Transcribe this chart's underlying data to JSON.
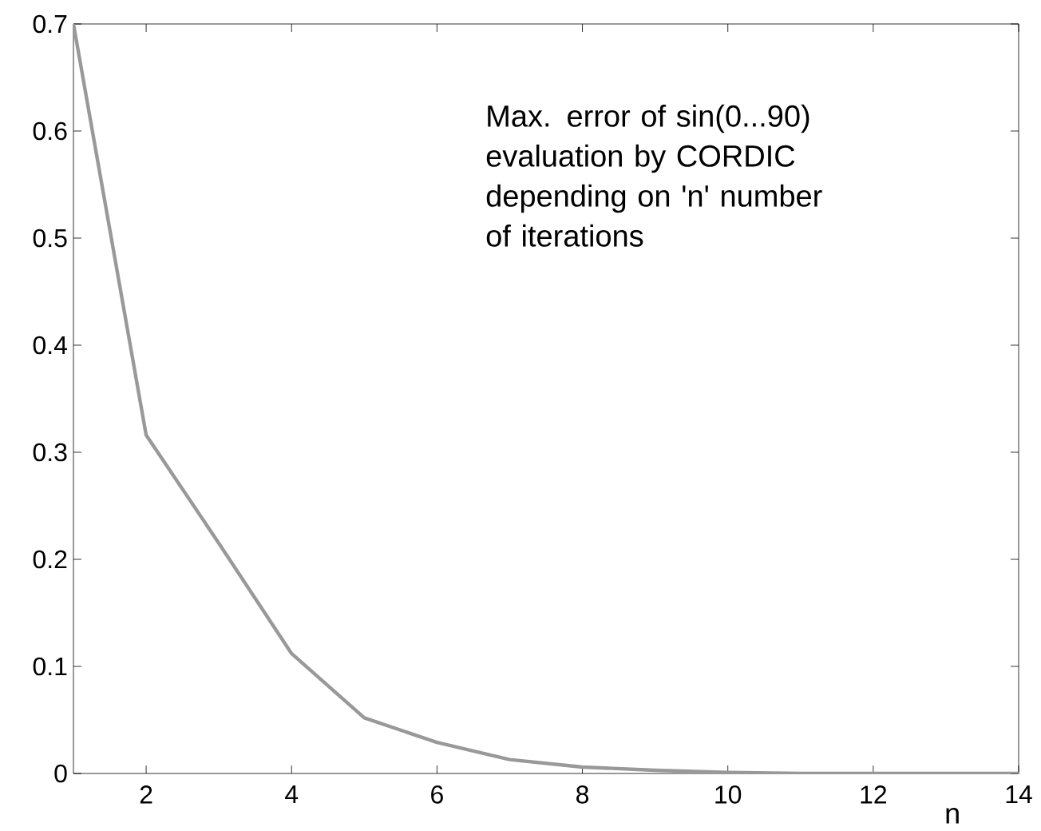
{
  "chart_data": {
    "type": "line",
    "x": [
      1,
      2,
      3,
      4,
      5,
      6,
      7,
      8,
      9,
      10,
      11,
      12,
      13,
      14
    ],
    "values": [
      0.7,
      0.316,
      0.215,
      0.112,
      0.052,
      0.029,
      0.013,
      0.006,
      0.003,
      0.001,
      0,
      0,
      0,
      0
    ],
    "color": "#999999",
    "xlabel": "n",
    "xlim": [
      1,
      14
    ],
    "xticks": [
      2,
      4,
      6,
      8,
      10,
      12,
      14
    ],
    "ylim": [
      0,
      0.7
    ],
    "yticks": [
      0,
      0.1,
      0.2,
      0.3,
      0.4,
      0.5,
      0.6,
      0.7
    ],
    "annotations": [
      "Max. error of sin(0...90) evaluation by CORDIC depending on 'n' number of iterations"
    ],
    "grid": false,
    "marker": "none",
    "line_style": "solid"
  }
}
